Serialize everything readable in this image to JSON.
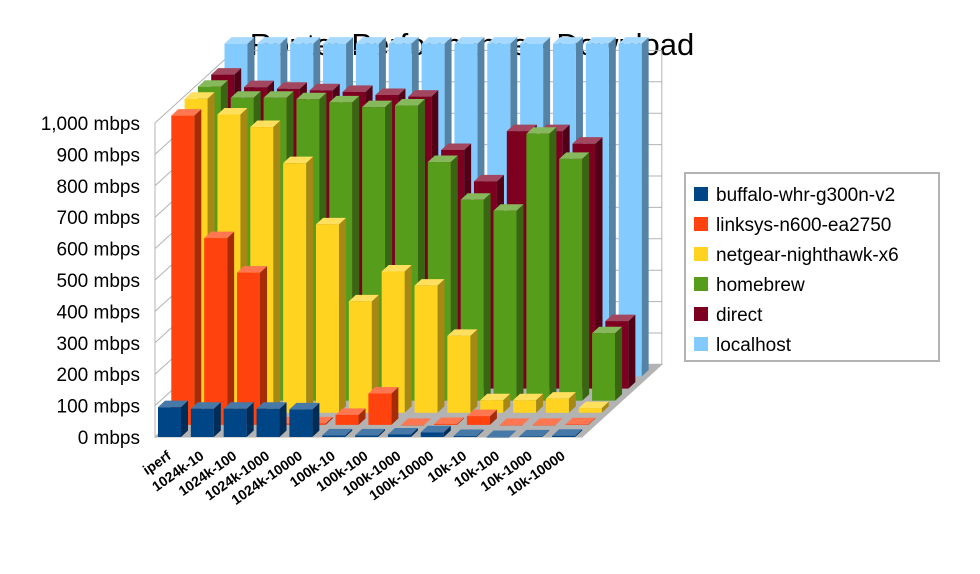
{
  "chart_data": {
    "type": "bar",
    "subtype": "3d-clustered-depth",
    "title": "Router Performance - Download",
    "xlabel": "",
    "ylabel": "",
    "ylim": [
      0,
      1000
    ],
    "y_ticks": [
      "0 mbps",
      "100 mbps",
      "200 mbps",
      "300 mbps",
      "400 mbps",
      "500 mbps",
      "600 mbps",
      "700 mbps",
      "800 mbps",
      "900 mbps",
      "1,000 mbps"
    ],
    "grid": true,
    "legend_position": "right",
    "categories": [
      "iperf",
      "1024k-10",
      "1024k-100",
      "1024k-1000",
      "1024k-10000",
      "100k-10",
      "100k-100",
      "100k-1000",
      "100k-10000",
      "10k-10",
      "10k-100",
      "10k-1000",
      "10k-10000"
    ],
    "series": [
      {
        "name": "buffalo-whr-g300n-v2",
        "color": "#004586",
        "values": [
          95,
          90,
          90,
          90,
          88,
          5,
          5,
          8,
          15,
          3,
          0,
          2,
          4
        ]
      },
      {
        "name": "linksys-n600-ea2750",
        "color": "#ff420e",
        "values": [
          985,
          595,
          485,
          5,
          5,
          32,
          100,
          0,
          3,
          28,
          0,
          0,
          2
        ]
      },
      {
        "name": "netgear-nighthawk-x6",
        "color": "#ffd320",
        "values": [
          1000,
          950,
          910,
          795,
          600,
          355,
          450,
          405,
          245,
          40,
          40,
          45,
          15
        ]
      },
      {
        "name": "homebrew",
        "color": "#579d1c",
        "values": [
          1000,
          965,
          965,
          960,
          950,
          935,
          940,
          760,
          640,
          605,
          850,
          770,
          215
        ]
      },
      {
        "name": "direct",
        "color": "#7e0021",
        "values": [
          1000,
          960,
          955,
          950,
          945,
          935,
          930,
          760,
          660,
          820,
          820,
          780,
          215
        ]
      },
      {
        "name": "localhost",
        "color": "#83caff",
        "values": [
          1060,
          1060,
          1060,
          1060,
          1060,
          1060,
          1060,
          1060,
          1060,
          1060,
          1060,
          1060,
          1060
        ]
      }
    ]
  }
}
